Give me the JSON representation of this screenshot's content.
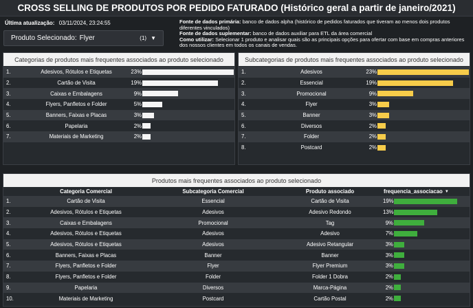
{
  "title": "CROSS SELLING DE PRODUTOS POR PEDIDO FATURADO (Histórico geral a partir de janeiro/2021)",
  "update": {
    "label": "Última atualização:",
    "value": "03/11/2024, 23:24:55"
  },
  "selector": {
    "label": "Produto Selecionado:",
    "value": "Flyer",
    "count": "(1)"
  },
  "info": {
    "primary_label": "Fonte de dados primária:",
    "primary_text": " banco de dados alpha (histórico de pedidos faturados que tiveram ao menos dois produtos diferentes vinculados)",
    "supp_label": "Fonte de dados suplementar:",
    "supp_text": " banco de dados auxiliar para ETL da área comercial",
    "usage_label": "Como utilizar:",
    "usage_text": " Selecionar 1 produto e analisar quais são as principais opções para ofertar com base em compras anteriores dos nossos clientes em todos os canais de vendas."
  },
  "categories_panel": {
    "title": "Categorias de produtos mais frequentes associados ao produto selecionado",
    "rows": [
      {
        "rank": "1.",
        "label": "Adesivos, Rótulos e Etiquetas",
        "pct": "23%",
        "value": 23
      },
      {
        "rank": "2.",
        "label": "Cartão de Visita",
        "pct": "19%",
        "value": 19
      },
      {
        "rank": "3.",
        "label": "Caixas e Embalagens",
        "pct": "9%",
        "value": 9
      },
      {
        "rank": "4.",
        "label": "Flyers, Panfletos e Folder",
        "pct": "5%",
        "value": 5
      },
      {
        "rank": "5.",
        "label": "Banners, Faixas e Placas",
        "pct": "3%",
        "value": 3
      },
      {
        "rank": "6.",
        "label": "Papelaria",
        "pct": "2%",
        "value": 2
      },
      {
        "rank": "7.",
        "label": "Materiais de Marketing",
        "pct": "2%",
        "value": 2
      }
    ]
  },
  "subcategories_panel": {
    "title": "Subcategorias de produtos mais frequentes associados ao produto selecionado",
    "rows": [
      {
        "rank": "1.",
        "label": "Adesivos",
        "pct": "23%",
        "value": 23
      },
      {
        "rank": "2.",
        "label": "Essencial",
        "pct": "19%",
        "value": 19
      },
      {
        "rank": "3.",
        "label": "Promocional",
        "pct": "9%",
        "value": 9
      },
      {
        "rank": "4.",
        "label": "Flyer",
        "pct": "3%",
        "value": 3
      },
      {
        "rank": "5.",
        "label": "Banner",
        "pct": "3%",
        "value": 3
      },
      {
        "rank": "6.",
        "label": "Diversos",
        "pct": "2%",
        "value": 2
      },
      {
        "rank": "7.",
        "label": "Folder",
        "pct": "2%",
        "value": 2
      },
      {
        "rank": "8.",
        "label": "Postcard",
        "pct": "2%",
        "value": 2
      }
    ]
  },
  "products_table": {
    "title": "Produtos mais frequentes associados ao produto selecionado",
    "headers": {
      "category": "Categoria Comercial",
      "subcategory": "Subcategoria Comercial",
      "product": "Produto associado",
      "frequency": "frequencia_associacao"
    },
    "rows": [
      {
        "rank": "1.",
        "category": "Cartão de Visita",
        "subcategory": "Essencial",
        "product": "Cartão de Visita",
        "pct": "19%",
        "value": 19
      },
      {
        "rank": "2.",
        "category": "Adesivos, Rótulos e Etiquetas",
        "subcategory": "Adesivos",
        "product": "Adesivo Redondo",
        "pct": "13%",
        "value": 13
      },
      {
        "rank": "3.",
        "category": "Caixas e Embalagens",
        "subcategory": "Promocional",
        "product": "Tag",
        "pct": "9%",
        "value": 9
      },
      {
        "rank": "4.",
        "category": "Adesivos, Rótulos e Etiquetas",
        "subcategory": "Adesivos",
        "product": "Adesivo",
        "pct": "7%",
        "value": 7
      },
      {
        "rank": "5.",
        "category": "Adesivos, Rótulos e Etiquetas",
        "subcategory": "Adesivos",
        "product": "Adesivo Retangular",
        "pct": "3%",
        "value": 3
      },
      {
        "rank": "6.",
        "category": "Banners, Faixas e Placas",
        "subcategory": "Banner",
        "product": "Banner",
        "pct": "3%",
        "value": 3
      },
      {
        "rank": "7.",
        "category": "Flyers, Panfletos e Folder",
        "subcategory": "Flyer",
        "product": "Flyer Premium",
        "pct": "3%",
        "value": 3
      },
      {
        "rank": "8.",
        "category": "Flyers, Panfletos e Folder",
        "subcategory": "Folder",
        "product": "Folder 1 Dobra",
        "pct": "2%",
        "value": 2
      },
      {
        "rank": "9.",
        "category": "Papelaria",
        "subcategory": "Diversos",
        "product": "Marca-Página",
        "pct": "2%",
        "value": 2
      },
      {
        "rank": "10.",
        "category": "Materiais de Marketing",
        "subcategory": "Postcard",
        "product": "Cartão Postal",
        "pct": "2%",
        "value": 2
      }
    ]
  },
  "colors": {
    "white_bar": "#f5f5f5",
    "yellow_bar": "#f7cc4a",
    "green_bar": "#3fae3d"
  },
  "icons": {
    "selector_caret": "chevron-down-icon",
    "sort": "sort-desc-icon"
  }
}
